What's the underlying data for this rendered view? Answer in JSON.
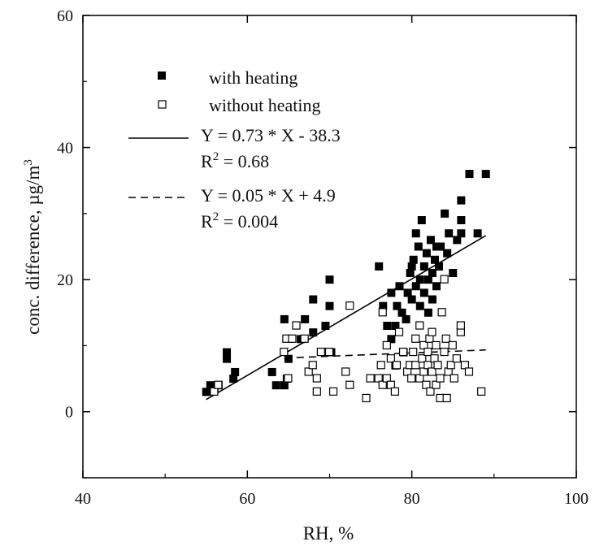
{
  "chart_data": {
    "type": "scatter",
    "xlabel": "RH, %",
    "ylabel_main": "conc. difference, µg/m",
    "ylabel_sup": "3",
    "xlim": [
      40,
      100
    ],
    "ylim": [
      -10,
      60
    ],
    "x_ticks": [
      40,
      60,
      80,
      100
    ],
    "y_ticks": [
      0,
      20,
      40,
      60
    ],
    "x_minor_ticks": [
      50,
      70,
      90
    ],
    "y_minor_ticks": [
      -10,
      10,
      30,
      50
    ],
    "grid": false,
    "legend_position": "top-left",
    "series": [
      {
        "name": "with heating",
        "marker": "filled-square",
        "color": "#000000",
        "points": [
          [
            55,
            3
          ],
          [
            55.5,
            4
          ],
          [
            56,
            3.5
          ],
          [
            56.5,
            4
          ],
          [
            57.5,
            8
          ],
          [
            57.5,
            9
          ],
          [
            58.3,
            5
          ],
          [
            58.5,
            6
          ],
          [
            63,
            6
          ],
          [
            63.5,
            4
          ],
          [
            64.5,
            4
          ],
          [
            64.8,
            5
          ],
          [
            64.5,
            14
          ],
          [
            65,
            8
          ],
          [
            66.5,
            11
          ],
          [
            67,
            14
          ],
          [
            68,
            17
          ],
          [
            68,
            12
          ],
          [
            69.5,
            13
          ],
          [
            70,
            16
          ],
          [
            70,
            20
          ],
          [
            70.2,
            9
          ],
          [
            76,
            22
          ],
          [
            76.5,
            16
          ],
          [
            77,
            13
          ],
          [
            77.5,
            11
          ],
          [
            77.5,
            18
          ],
          [
            78,
            7
          ],
          [
            78,
            13
          ],
          [
            78.2,
            16
          ],
          [
            78.5,
            19
          ],
          [
            78.8,
            15
          ],
          [
            79,
            9
          ],
          [
            79.3,
            14
          ],
          [
            79.5,
            18
          ],
          [
            79.8,
            21
          ],
          [
            80,
            17
          ],
          [
            80,
            22
          ],
          [
            80.2,
            23
          ],
          [
            80.5,
            19
          ],
          [
            80.5,
            27
          ],
          [
            80.8,
            25
          ],
          [
            81,
            16
          ],
          [
            81,
            20
          ],
          [
            81.2,
            29
          ],
          [
            81.5,
            18
          ],
          [
            81.5,
            22
          ],
          [
            81.8,
            24
          ],
          [
            82,
            15
          ],
          [
            82,
            20
          ],
          [
            82.3,
            26
          ],
          [
            82.5,
            17
          ],
          [
            82.5,
            21
          ],
          [
            82.8,
            23
          ],
          [
            83,
            19
          ],
          [
            83,
            25
          ],
          [
            83.3,
            22
          ],
          [
            83.5,
            25
          ],
          [
            84,
            30
          ],
          [
            84.3,
            24
          ],
          [
            84.5,
            27
          ],
          [
            85,
            21
          ],
          [
            85.5,
            26
          ],
          [
            86,
            29
          ],
          [
            86,
            32
          ],
          [
            86,
            27
          ],
          [
            87,
            36
          ],
          [
            88,
            27
          ],
          [
            89,
            36
          ]
        ]
      },
      {
        "name": "without heating",
        "marker": "open-square",
        "color": "#000000",
        "points": [
          [
            56,
            3
          ],
          [
            56.5,
            4
          ],
          [
            64.5,
            9
          ],
          [
            64.8,
            11
          ],
          [
            65,
            5
          ],
          [
            65.5,
            11
          ],
          [
            66,
            13
          ],
          [
            67,
            11
          ],
          [
            67.5,
            6
          ],
          [
            68,
            7
          ],
          [
            68.5,
            5
          ],
          [
            68.5,
            3
          ],
          [
            69,
            9
          ],
          [
            70,
            9
          ],
          [
            70.5,
            3
          ],
          [
            72,
            6
          ],
          [
            72.5,
            4
          ],
          [
            72.5,
            16
          ],
          [
            74.5,
            2
          ],
          [
            75,
            5
          ],
          [
            76,
            5
          ],
          [
            76.3,
            7
          ],
          [
            76.5,
            4
          ],
          [
            76.5,
            15
          ],
          [
            77,
            5
          ],
          [
            77,
            10
          ],
          [
            77.5,
            8
          ],
          [
            77.5,
            4
          ],
          [
            78,
            3
          ],
          [
            78.2,
            7
          ],
          [
            78.5,
            12
          ],
          [
            79,
            9
          ],
          [
            79.5,
            6
          ],
          [
            79.8,
            7
          ],
          [
            80,
            5
          ],
          [
            80.2,
            9
          ],
          [
            80.5,
            7
          ],
          [
            80.5,
            11
          ],
          [
            81,
            5
          ],
          [
            81,
            13
          ],
          [
            81.3,
            8
          ],
          [
            81.5,
            6
          ],
          [
            81.5,
            10
          ],
          [
            81.8,
            4
          ],
          [
            82,
            7
          ],
          [
            82,
            9
          ],
          [
            82.2,
            11
          ],
          [
            82.3,
            3
          ],
          [
            82.5,
            6
          ],
          [
            82.5,
            12
          ],
          [
            82.8,
            8
          ],
          [
            83,
            4
          ],
          [
            83,
            10
          ],
          [
            83.2,
            7
          ],
          [
            83.5,
            2
          ],
          [
            83.5,
            5
          ],
          [
            83.7,
            15
          ],
          [
            84,
            20
          ],
          [
            84,
            9
          ],
          [
            84.2,
            11
          ],
          [
            84.3,
            2
          ],
          [
            84.5,
            6
          ],
          [
            84.8,
            7
          ],
          [
            85,
            10
          ],
          [
            85.2,
            5
          ],
          [
            85.5,
            8
          ],
          [
            86,
            12
          ],
          [
            86,
            13
          ],
          [
            86.5,
            7
          ],
          [
            87,
            6
          ],
          [
            88.5,
            3
          ]
        ]
      }
    ],
    "fits": [
      {
        "label": "Y = 0.73 * X - 38.3",
        "r2_prefix": "R",
        "r2_sup": "2",
        "r2_value": " = 0.68",
        "style": "solid",
        "slope": 0.73,
        "intercept": -38.3,
        "x_range": [
          55,
          89
        ]
      },
      {
        "label": "Y = 0.05 * X + 4.9",
        "r2_prefix": "R",
        "r2_sup": "2",
        "r2_value": " = 0.004",
        "style": "dashed",
        "slope": 0.05,
        "intercept": 4.9,
        "x_range": [
          64.5,
          89
        ]
      }
    ]
  }
}
